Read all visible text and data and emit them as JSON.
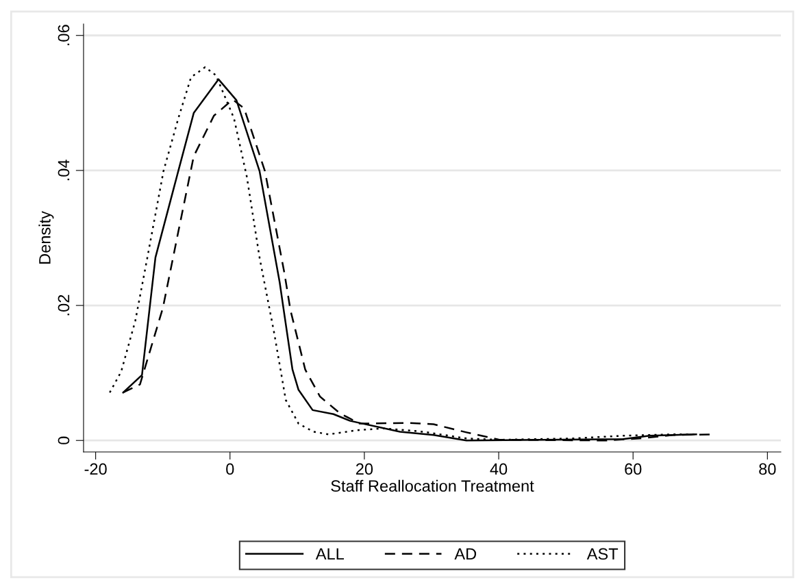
{
  "chart_data": {
    "type": "line",
    "xlabel": "Staff Reallocation Treatment",
    "ylabel": "Density",
    "xlim": [
      -21.8,
      82
    ],
    "xticks": [
      -20,
      0,
      20,
      40,
      60,
      80
    ],
    "ylim": [
      -0.0017,
      0.0617
    ],
    "yticks": [
      {
        "value": 0,
        "label": "0"
      },
      {
        "value": 0.02,
        "label": ".02"
      },
      {
        "value": 0.04,
        "label": ".04"
      },
      {
        "value": 0.06,
        "label": ".06"
      }
    ],
    "grid": "y",
    "legend": "bottom",
    "series": [
      {
        "name": "ALL",
        "color": "#000000",
        "line_style": "solid",
        "x": [
          -15.9,
          -13.1,
          -11.1,
          -7.7,
          -5.4,
          -1.7,
          0.96,
          4.4,
          7.4,
          8.0,
          9.3,
          10.2,
          12.3,
          15.4,
          17.9,
          25.3,
          30.3,
          35.2,
          58.5,
          62.5,
          69.4
        ],
        "values": [
          0.0071,
          0.0097,
          0.0271,
          0.0399,
          0.0485,
          0.0535,
          0.0504,
          0.0399,
          0.0234,
          0.0193,
          0.0105,
          0.0075,
          0.0045,
          0.0039,
          0.0029,
          0.0013,
          0.0008,
          0.0,
          0.0002,
          0.0007,
          0.0009
        ]
      },
      {
        "name": "AD",
        "color": "#000000",
        "line_style": "dashed",
        "x": [
          -15.9,
          -13.4,
          -10.0,
          -7.7,
          -5.4,
          -2.4,
          0.4,
          2.1,
          5.2,
          8.1,
          9.0,
          11.2,
          13.4,
          16.4,
          19.3,
          26.3,
          30.3,
          35.2,
          40.1,
          56.0,
          60.9,
          65.9,
          71.8
        ],
        "values": [
          0.0071,
          0.0083,
          0.0196,
          0.0309,
          0.0421,
          0.0481,
          0.0505,
          0.0492,
          0.0399,
          0.0248,
          0.0193,
          0.0105,
          0.0065,
          0.004,
          0.0025,
          0.0026,
          0.0024,
          0.0012,
          0.0001,
          0.0,
          0.0003,
          0.0008,
          0.0009
        ]
      },
      {
        "name": "AST",
        "color": "#000000",
        "line_style": "dotted",
        "x": [
          -17.9,
          -16.2,
          -14.1,
          -12.3,
          -9.9,
          -7.7,
          -5.8,
          -3.7,
          -2.1,
          0.6,
          2.5,
          4.4,
          6.6,
          8.3,
          10.2,
          12.4,
          14.7,
          18.8,
          22.8,
          28.7,
          35.2,
          40.1,
          51.1,
          58.5,
          65.9,
          69.4
        ],
        "values": [
          0.0071,
          0.0102,
          0.0177,
          0.0271,
          0.0399,
          0.0477,
          0.0538,
          0.0553,
          0.0541,
          0.0477,
          0.0391,
          0.0271,
          0.0158,
          0.006,
          0.0025,
          0.0013,
          0.0009,
          0.0015,
          0.0018,
          0.0013,
          0.0003,
          0.0001,
          0.0003,
          0.0007,
          0.0009,
          0.0009
        ]
      }
    ]
  }
}
